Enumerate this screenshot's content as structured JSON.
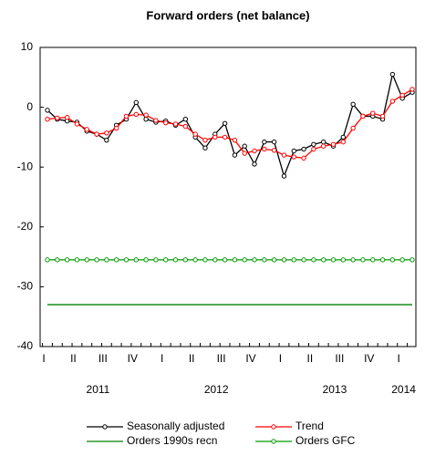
{
  "chart_data": {
    "type": "line",
    "title": "Forward orders (net balance)",
    "categories": [
      "I",
      null,
      null,
      "II",
      null,
      null,
      "III",
      null,
      null,
      "IV",
      null,
      null,
      "I",
      null,
      null,
      "II",
      null,
      null,
      "III",
      null,
      null,
      "IV",
      null,
      null,
      "I",
      null,
      null,
      "II",
      null,
      null,
      "III",
      null,
      null,
      "IV",
      null,
      null,
      "I",
      null
    ],
    "years": [
      "2011",
      "2012",
      "2013",
      "2014"
    ],
    "ylim": [
      -40,
      10
    ],
    "yticks": [
      -40,
      -30,
      -20,
      -10,
      0,
      10
    ],
    "series": [
      {
        "name": "Seasonally adjusted",
        "color": "#000000",
        "marker": true,
        "values": [
          -0.5,
          -2,
          -2.3,
          -2.5,
          -4,
          -4.5,
          -5.5,
          -3,
          -2,
          0.8,
          -2,
          -2.5,
          -2.3,
          -3,
          -2,
          -5,
          -6.8,
          -4.5,
          -2.7,
          -8,
          -6.5,
          -9.5,
          -5.8,
          -5.8,
          -11.5,
          -7.3,
          -7,
          -6.2,
          -5.8,
          -6.5,
          -5,
          0.5,
          -1.5,
          -1.5,
          -2,
          5.5,
          1.5,
          2.5
        ]
      },
      {
        "name": "Trend",
        "color": "#ff0000",
        "marker": true,
        "values": [
          -2,
          -1.8,
          -1.7,
          -2.8,
          -3.7,
          -4.5,
          -4.3,
          -3.5,
          -1.5,
          -1.2,
          -1.3,
          -2.2,
          -2.6,
          -2.8,
          -3.2,
          -4.5,
          -5.5,
          -5,
          -5,
          -5.5,
          -7.7,
          -7.3,
          -7,
          -7.2,
          -8,
          -8.3,
          -8.5,
          -7,
          -6.5,
          -6.2,
          -5.8,
          -3.5,
          -1.5,
          -1,
          -1.5,
          1,
          2,
          3
        ]
      },
      {
        "name": "Orders 1990s recn",
        "color": "#008000",
        "marker": false,
        "values": [
          -33,
          -33,
          -33,
          -33,
          -33,
          -33,
          -33,
          -33,
          -33,
          -33,
          -33,
          -33,
          -33,
          -33,
          -33,
          -33,
          -33,
          -33,
          -33,
          -33,
          -33,
          -33,
          -33,
          -33,
          -33,
          -33,
          -33,
          -33,
          -33,
          -33,
          -33,
          -33,
          -33,
          -33,
          -33,
          -33,
          -33,
          -33
        ]
      },
      {
        "name": "Orders GFC",
        "color": "#009900",
        "marker": true,
        "values": [
          -25.5,
          -25.5,
          -25.5,
          -25.5,
          -25.5,
          -25.5,
          -25.5,
          -25.5,
          -25.5,
          -25.5,
          -25.5,
          -25.5,
          -25.5,
          -25.5,
          -25.5,
          -25.5,
          -25.5,
          -25.5,
          -25.5,
          -25.5,
          -25.5,
          -25.5,
          -25.5,
          -25.5,
          -25.5,
          -25.5,
          -25.5,
          -25.5,
          -25.5,
          -25.5,
          -25.5,
          -25.5,
          -25.5,
          -25.5,
          -25.5,
          -25.5,
          -25.5,
          -25.5
        ]
      }
    ]
  }
}
